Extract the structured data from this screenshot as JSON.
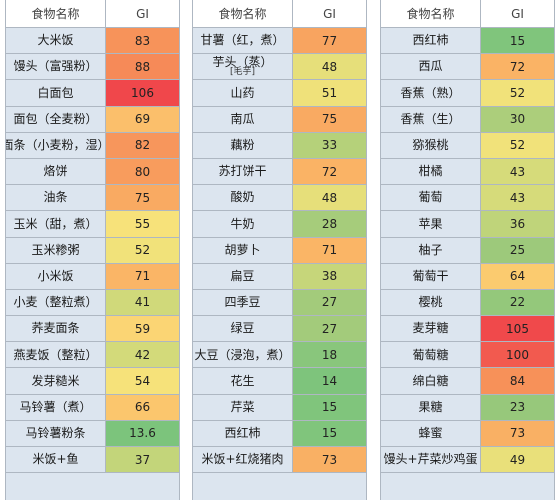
{
  "header": {
    "name": "食物名称",
    "gi": "GI"
  },
  "tables": [
    {
      "rows": [
        {
          "name": "大米饭",
          "gi": "83",
          "color": "#f7935a"
        },
        {
          "name": "馒头（富强粉）",
          "gi": "88",
          "color": "#f68a58"
        },
        {
          "name": "白面包",
          "gi": "106",
          "color": "#f0474b"
        },
        {
          "name": "面包（全麦粉）",
          "gi": "69",
          "color": "#fbbf6b"
        },
        {
          "name": "面条（小麦粉，湿）",
          "gi": "82",
          "color": "#f7965c"
        },
        {
          "name": "烙饼",
          "gi": "80",
          "color": "#f89c5d"
        },
        {
          "name": "油条",
          "gi": "75",
          "color": "#f9aa62"
        },
        {
          "name": "玉米（甜，煮）",
          "gi": "55",
          "color": "#f7e27a"
        },
        {
          "name": "玉米糁粥",
          "gi": "52",
          "color": "#f1e27a"
        },
        {
          "name": "小米饭",
          "gi": "71",
          "color": "#fab566"
        },
        {
          "name": "小麦（整粒煮）",
          "gi": "41",
          "color": "#d0d97a"
        },
        {
          "name": "荞麦面条",
          "gi": "59",
          "color": "#fbd574"
        },
        {
          "name": "燕麦饭（整粒）",
          "gi": "42",
          "color": "#d3da7a"
        },
        {
          "name": "发芽糙米",
          "gi": "54",
          "color": "#f6e27a"
        },
        {
          "name": "马铃薯（煮）",
          "gi": "66",
          "color": "#fbc66d"
        },
        {
          "name": "马铃薯粉条",
          "gi": "13.6",
          "color": "#7cc47c"
        },
        {
          "name": "米饭+鱼",
          "gi": "37",
          "color": "#c3d57a"
        }
      ]
    },
    {
      "rows": [
        {
          "name": "甘薯（红，煮）",
          "gi": "77",
          "color": "#f8a460"
        },
        {
          "name": "芋头（蒸）",
          "sub": "[毛芋]",
          "gi": "48",
          "color": "#e6df7a"
        },
        {
          "name": "山药",
          "gi": "51",
          "color": "#efe17a"
        },
        {
          "name": "南瓜",
          "gi": "75",
          "color": "#f9aa62"
        },
        {
          "name": "藕粉",
          "gi": "33",
          "color": "#b5d17a"
        },
        {
          "name": "苏打饼干",
          "gi": "72",
          "color": "#fab365"
        },
        {
          "name": "酸奶",
          "gi": "48",
          "color": "#e6df7a"
        },
        {
          "name": "牛奶",
          "gi": "28",
          "color": "#a6cc7b"
        },
        {
          "name": "胡萝卜",
          "gi": "71",
          "color": "#fab566"
        },
        {
          "name": "扁豆",
          "gi": "38",
          "color": "#c6d67a"
        },
        {
          "name": "四季豆",
          "gi": "27",
          "color": "#a3cb7b"
        },
        {
          "name": "绿豆",
          "gi": "27",
          "color": "#a3cb7b"
        },
        {
          "name": "大豆（浸泡，煮）",
          "gi": "18",
          "color": "#89c67c"
        },
        {
          "name": "花生",
          "gi": "14",
          "color": "#7ec47c"
        },
        {
          "name": "芹菜",
          "gi": "15",
          "color": "#80c57c"
        },
        {
          "name": "西红柿",
          "gi": "15",
          "color": "#80c57c"
        },
        {
          "name": "米饭+红烧猪肉",
          "gi": "73",
          "color": "#f9b064"
        }
      ]
    },
    {
      "rows": [
        {
          "name": "西红柿",
          "gi": "15",
          "color": "#80c57c"
        },
        {
          "name": "西瓜",
          "gi": "72",
          "color": "#fab365"
        },
        {
          "name": "香蕉（熟）",
          "gi": "52",
          "color": "#f1e27a"
        },
        {
          "name": "香蕉（生）",
          "gi": "30",
          "color": "#acce7b"
        },
        {
          "name": "猕猴桃",
          "gi": "52",
          "color": "#f1e27a"
        },
        {
          "name": "柑橘",
          "gi": "43",
          "color": "#d6db7a"
        },
        {
          "name": "葡萄",
          "gi": "43",
          "color": "#d6db7a"
        },
        {
          "name": "苹果",
          "gi": "36",
          "color": "#bfd47a"
        },
        {
          "name": "柚子",
          "gi": "25",
          "color": "#9dc97b"
        },
        {
          "name": "葡萄干",
          "gi": "64",
          "color": "#fbcb6f"
        },
        {
          "name": "樱桃",
          "gi": "22",
          "color": "#94c87b"
        },
        {
          "name": "麦芽糖",
          "gi": "105",
          "color": "#f0494b"
        },
        {
          "name": "葡萄糖",
          "gi": "100",
          "color": "#f25a4f"
        },
        {
          "name": "绵白糖",
          "gi": "84",
          "color": "#f79159"
        },
        {
          "name": "果糖",
          "gi": "23",
          "color": "#97c87b"
        },
        {
          "name": "蜂蜜",
          "gi": "73",
          "color": "#f9b064"
        },
        {
          "name": "馒头+芹菜炒鸡蛋",
          "gi": "49",
          "color": "#e9e07a"
        }
      ]
    }
  ]
}
